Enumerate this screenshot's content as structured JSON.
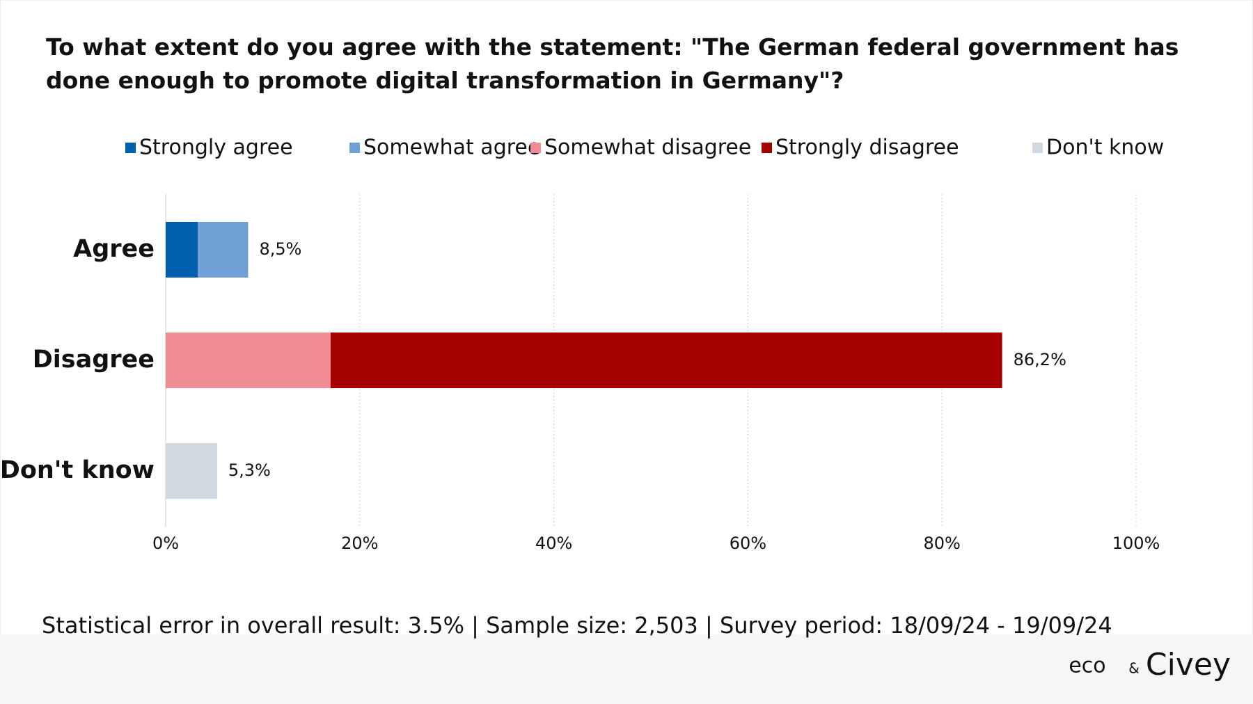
{
  "chart_data": {
    "type": "stacked-bar-horizontal",
    "title": "To what extent do you agree with the statement: \"The German federal government has done enough to promote digital transformation in Germany\"?",
    "categories": [
      "Agree",
      "Disagree",
      "Don't know"
    ],
    "series": [
      {
        "name": "Strongly agree",
        "color": "#0060ae",
        "values": [
          3.3,
          null,
          null
        ]
      },
      {
        "name": "Somewhat agree",
        "color": "#6fa1d6",
        "values": [
          5.2,
          null,
          null
        ]
      },
      {
        "name": "Somewhat disagree",
        "color": "#f08c93",
        "values": [
          null,
          17.0,
          null
        ]
      },
      {
        "name": "Strongly disagree",
        "color": "#a50000",
        "values": [
          null,
          69.2,
          null
        ]
      },
      {
        "name": "Don't know",
        "color": "#d0d8e0",
        "values": [
          null,
          null,
          5.3
        ]
      }
    ],
    "totals": [
      8.5,
      86.2,
      5.3
    ],
    "total_labels": [
      "8,5%",
      "86,2%",
      "5,3%"
    ],
    "xlim": [
      0,
      100
    ],
    "xticks": [
      {
        "value": 0,
        "label": "0%"
      },
      {
        "value": 20,
        "label": "20%"
      },
      {
        "value": 40,
        "label": "40%"
      },
      {
        "value": 60,
        "label": "60%"
      },
      {
        "value": 80,
        "label": "80%"
      },
      {
        "value": 100,
        "label": "100%"
      }
    ],
    "grid": true,
    "legend": "top",
    "footer": "Statistical error in overall result: 3.5% | Sample size: 2,503 | Survey period: 18/09/24 - 19/09/24",
    "logos": [
      "eco",
      "&",
      "Civey"
    ]
  }
}
